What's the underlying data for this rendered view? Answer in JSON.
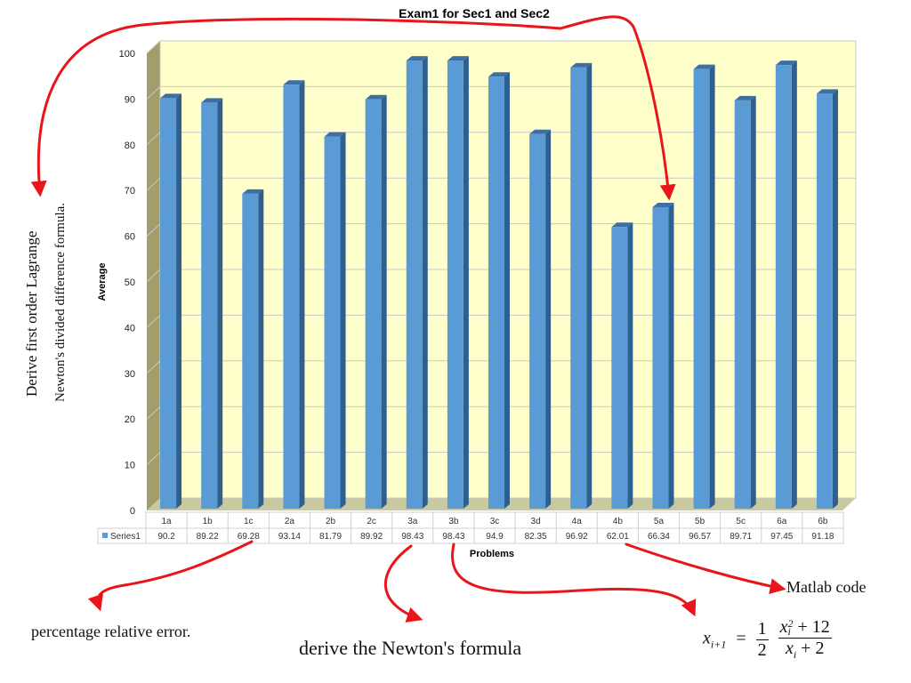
{
  "chart_data": {
    "type": "bar",
    "title": "Exam1 for Sec1 and Sec2",
    "xlabel": "Problems",
    "ylabel": "Average",
    "ylim": [
      0,
      100
    ],
    "yticks": [
      "0",
      "10",
      "20",
      "30",
      "40",
      "50",
      "60",
      "70",
      "80",
      "90",
      "100"
    ],
    "grid": true,
    "legend_placement": "left of data table",
    "categories": [
      "1a",
      "1b",
      "1c",
      "2a",
      "2b",
      "2c",
      "3a",
      "3b",
      "3c",
      "3d",
      "4a",
      "4b",
      "5a",
      "5b",
      "5c",
      "6a",
      "6b"
    ],
    "series": [
      {
        "name": "Series1",
        "color": "#5b9bd5",
        "values": [
          90.2,
          89.22,
          69.28,
          93.14,
          81.79,
          89.92,
          98.43,
          98.43,
          94.9,
          82.35,
          96.92,
          62.01,
          66.34,
          96.57,
          89.71,
          97.45,
          91.18
        ],
        "value_labels": [
          "90.2",
          "89.22",
          "69.28",
          "93.14",
          "81.79",
          "89.92",
          "98.43",
          "98.43",
          "94.9",
          "82.35",
          "96.92",
          "62.01",
          "66.34",
          "96.57",
          "89.71",
          "97.45",
          "91.18"
        ]
      }
    ],
    "plot_background": "#ffffcc",
    "arrow_color": "#e8161b"
  },
  "notes": {
    "lagrange": "Derive first order Lagrange",
    "newton_divided": "Newton's divided difference formula.",
    "percentage_error": "percentage relative error.",
    "derive_newton": "derive the Newton's formula",
    "matlab": "Matlab code"
  },
  "formula": {
    "lhs": "x",
    "lhs_sub": "i+1",
    "eq": "=",
    "coef_num": "1",
    "coef_den": "2",
    "num_var": "x",
    "num_sub": "i",
    "num_sup": "2",
    "num_rest": "+ 12",
    "den_var": "x",
    "den_sub": "i",
    "den_rest": "+ 2"
  }
}
